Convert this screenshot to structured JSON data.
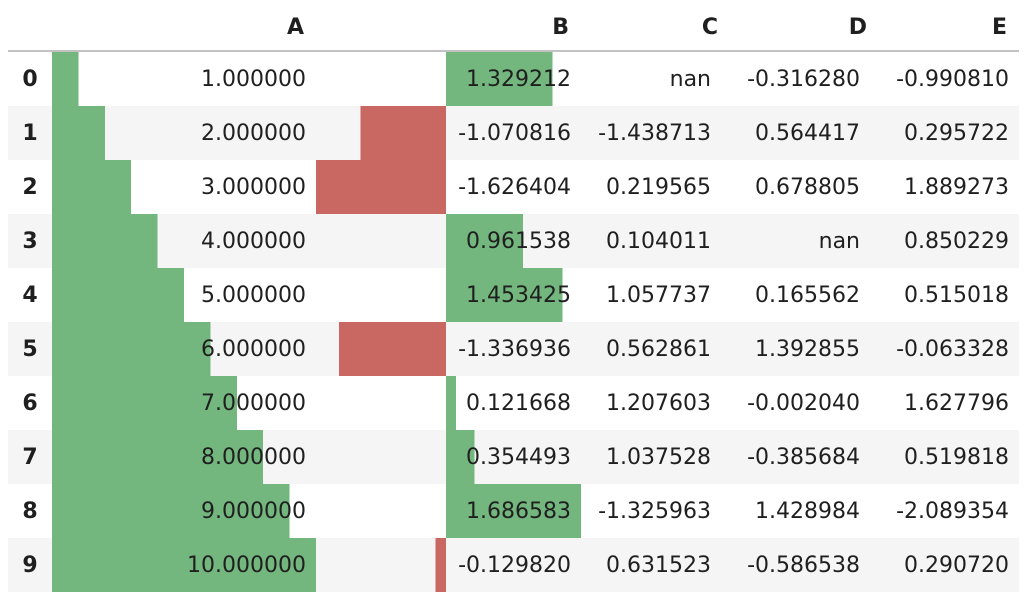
{
  "table": {
    "corner_label": "",
    "columns": [
      "A",
      "B",
      "C",
      "D",
      "E"
    ],
    "rows": [
      {
        "index": "0",
        "cells": [
          "1.000000",
          "1.329212",
          "nan",
          "-0.316280",
          "-0.990810"
        ]
      },
      {
        "index": "1",
        "cells": [
          "2.000000",
          "-1.070816",
          "-1.438713",
          "0.564417",
          "0.295722"
        ]
      },
      {
        "index": "2",
        "cells": [
          "3.000000",
          "-1.626404",
          "0.219565",
          "0.678805",
          "1.889273"
        ]
      },
      {
        "index": "3",
        "cells": [
          "4.000000",
          "0.961538",
          "0.104011",
          "nan",
          "0.850229"
        ]
      },
      {
        "index": "4",
        "cells": [
          "5.000000",
          "1.453425",
          "1.057737",
          "0.165562",
          "0.515018"
        ]
      },
      {
        "index": "5",
        "cells": [
          "6.000000",
          "-1.336936",
          "0.562861",
          "1.392855",
          "-0.063328"
        ]
      },
      {
        "index": "6",
        "cells": [
          "7.000000",
          "0.121668",
          "1.207603",
          "-0.002040",
          "1.627796"
        ]
      },
      {
        "index": "7",
        "cells": [
          "8.000000",
          "0.354493",
          "1.037528",
          "-0.385684",
          "0.519818"
        ]
      },
      {
        "index": "8",
        "cells": [
          "9.000000",
          "1.686583",
          "-1.325963",
          "1.428984",
          "-2.089354"
        ]
      },
      {
        "index": "9",
        "cells": [
          "10.000000",
          "-0.129820",
          "0.631523",
          "-0.586538",
          "0.290720"
        ]
      }
    ]
  },
  "chart_data": {
    "type": "table",
    "title": "",
    "columns": [
      "A",
      "B",
      "C",
      "D",
      "E"
    ],
    "index": [
      "0",
      "1",
      "2",
      "3",
      "4",
      "5",
      "6",
      "7",
      "8",
      "9"
    ],
    "series": [
      {
        "name": "A",
        "values": [
          1.0,
          2.0,
          3.0,
          4.0,
          5.0,
          6.0,
          7.0,
          8.0,
          9.0,
          10.0
        ]
      },
      {
        "name": "B",
        "values": [
          1.329212,
          -1.070816,
          -1.626404,
          0.961538,
          1.453425,
          -1.336936,
          0.121668,
          0.354493,
          1.686583,
          -0.12982
        ]
      },
      {
        "name": "C",
        "values": [
          null,
          -1.438713,
          0.219565,
          0.104011,
          1.057737,
          0.562861,
          1.207603,
          1.037528,
          -1.325963,
          0.631523
        ]
      },
      {
        "name": "D",
        "values": [
          -0.31628,
          0.564417,
          0.678805,
          null,
          0.165562,
          1.392855,
          -0.00204,
          -0.385684,
          1.428984,
          -0.586538
        ]
      },
      {
        "name": "E",
        "values": [
          -0.99081,
          0.295722,
          1.889273,
          0.850229,
          0.515018,
          -0.063328,
          1.627796,
          0.519818,
          -2.089354,
          0.29072
        ]
      }
    ],
    "bar_styling": {
      "bar_columns": [
        "A",
        "B"
      ],
      "align": "mid",
      "positive_color": "#73b77e",
      "negative_color": "#c96763"
    },
    "layout": {
      "stripe_color": "#f5f5f5",
      "header_border_color": "#c2c2c2",
      "text_color": "#1f1f1f",
      "grid": false,
      "legend": false
    }
  }
}
